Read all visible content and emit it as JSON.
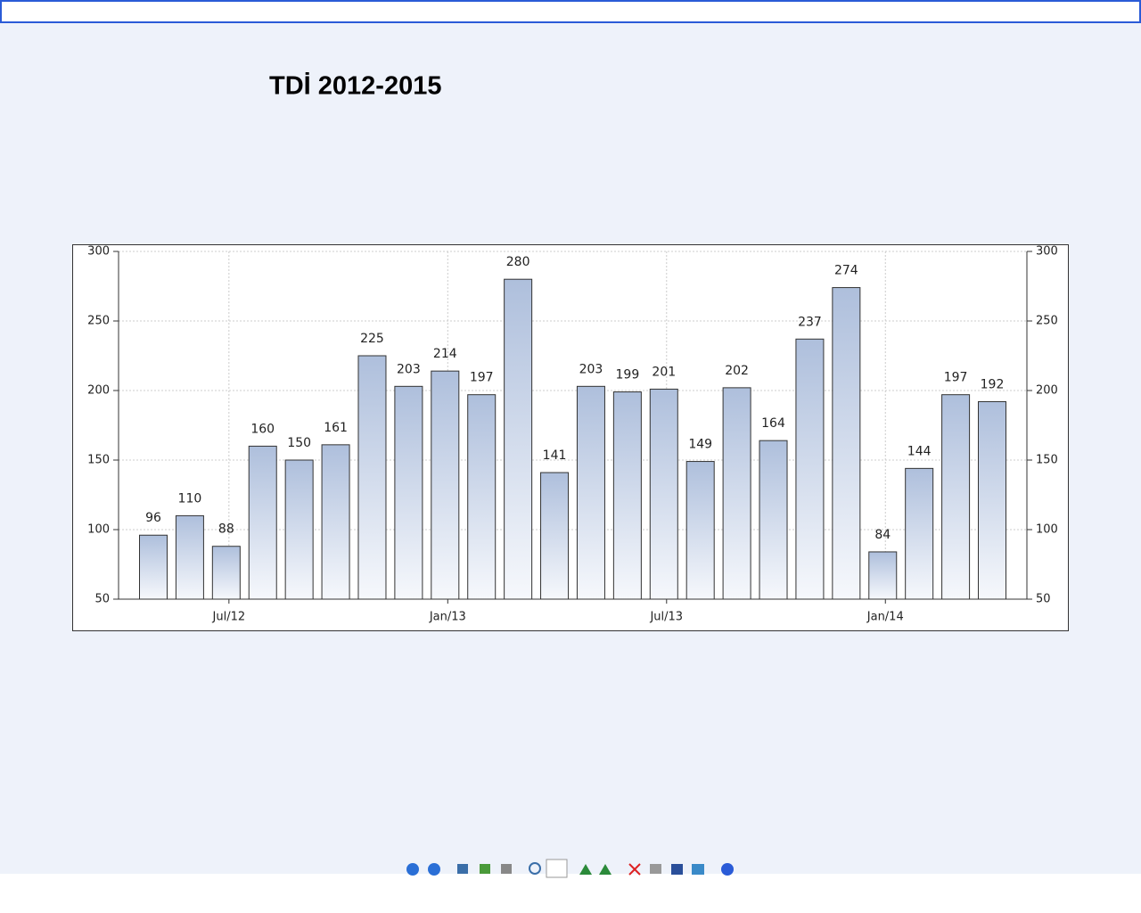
{
  "chart_data": {
    "type": "bar",
    "title": "TDİ 2012-2015",
    "categories": [
      null,
      null,
      "Jul/12",
      null,
      null,
      null,
      null,
      null,
      "Jan/13",
      null,
      null,
      null,
      null,
      null,
      "Jul/13",
      null,
      null,
      null,
      null,
      null,
      "Jan/14",
      null,
      null,
      null
    ],
    "values": [
      96,
      110,
      88,
      160,
      150,
      161,
      225,
      203,
      214,
      197,
      280,
      141,
      203,
      199,
      201,
      149,
      202,
      164,
      237,
      274,
      84,
      144,
      197,
      192
    ],
    "color": "#aebfdc",
    "ylim": [
      50,
      300
    ],
    "yticks": [
      50,
      100,
      150,
      200,
      250,
      300
    ],
    "grid": true
  }
}
